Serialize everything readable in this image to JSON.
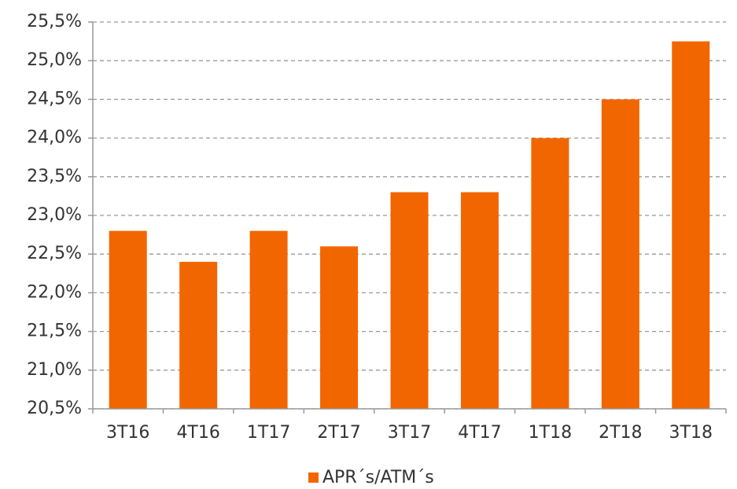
{
  "chart_data": {
    "type": "bar",
    "categories": [
      "3T16",
      "4T16",
      "1T17",
      "2T17",
      "3T17",
      "4T17",
      "1T18",
      "2T18",
      "3T18"
    ],
    "series": [
      {
        "name": "APR´s/ATM´s",
        "color": "#f26600",
        "values": [
          22.8,
          22.4,
          22.8,
          22.6,
          23.3,
          23.3,
          24.0,
          24.5,
          25.25
        ]
      }
    ],
    "ylim": [
      20.5,
      25.5
    ],
    "yticks": [
      {
        "value": 20.5,
        "label": "20,5%"
      },
      {
        "value": 21.0,
        "label": "21,0%"
      },
      {
        "value": 21.5,
        "label": "21,5%"
      },
      {
        "value": 22.0,
        "label": "22,0%"
      },
      {
        "value": 22.5,
        "label": "22,5%"
      },
      {
        "value": 23.0,
        "label": "23,0%"
      },
      {
        "value": 23.5,
        "label": "23,5%"
      },
      {
        "value": 24.0,
        "label": "24,0%"
      },
      {
        "value": 24.5,
        "label": "24,5%"
      },
      {
        "value": 25.0,
        "label": "25,0%"
      },
      {
        "value": 25.5,
        "label": "25,5%"
      }
    ],
    "grid": true,
    "legend": "bottom"
  }
}
